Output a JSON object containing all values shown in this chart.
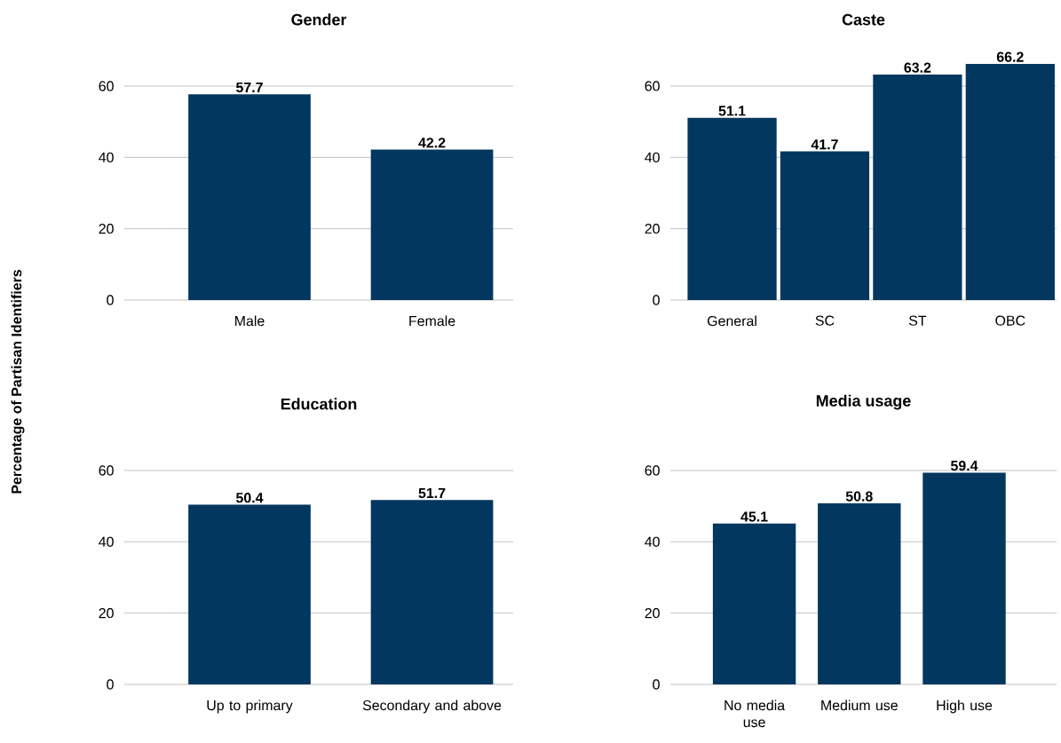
{
  "chart_data": [
    {
      "type": "bar",
      "title": "Gender",
      "ylabel": "Percentage of Partisan Identifiers",
      "categories": [
        "Male",
        "Female"
      ],
      "values": [
        57.7,
        42.2
      ],
      "color": "#02375f",
      "ylim": [
        0,
        60
      ],
      "yticks": [
        0,
        20,
        40,
        60
      ],
      "grid": "y",
      "data_labels": true
    },
    {
      "type": "bar",
      "title": "Caste",
      "categories": [
        "General",
        "SC",
        "ST",
        "OBC"
      ],
      "values": [
        51.1,
        41.7,
        63.2,
        66.2
      ],
      "color": "#02375f",
      "ylim": [
        0,
        66.2
      ],
      "yticks": [
        0,
        20,
        40,
        60
      ],
      "grid": "y",
      "data_labels": true
    },
    {
      "type": "bar",
      "title": "Education",
      "categories": [
        "Up to primary",
        "Secondary and above"
      ],
      "values": [
        50.4,
        51.7
      ],
      "color": "#02375f",
      "ylim": [
        0,
        60
      ],
      "yticks": [
        0,
        20,
        40,
        60
      ],
      "grid": "y",
      "data_labels": true
    },
    {
      "type": "bar",
      "title": "Media usage",
      "categories": [
        "No media use",
        "Medium use",
        "High use"
      ],
      "values": [
        45.1,
        50.8,
        59.4
      ],
      "color": "#02375f",
      "ylim": [
        0,
        60
      ],
      "yticks": [
        0,
        20,
        40,
        60
      ],
      "grid": "y",
      "data_labels": true
    }
  ]
}
